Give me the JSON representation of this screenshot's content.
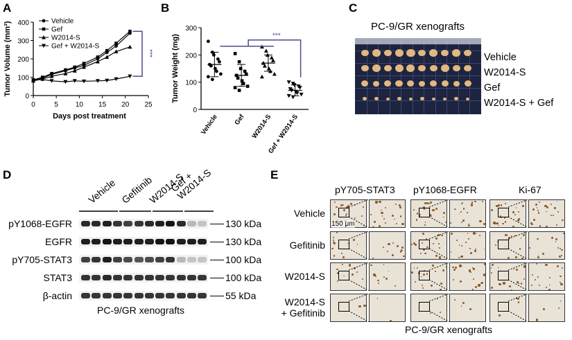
{
  "panelA": {
    "label": "A",
    "ylabel": "Tumor Volume (mm³)",
    "xlabel": "Days post treatment",
    "yticks": [
      "0",
      "100",
      "200",
      "300",
      "400"
    ],
    "xticks": [
      "0",
      "5",
      "10",
      "15",
      "20",
      "25"
    ],
    "legend": [
      "Vehicle",
      "Gef",
      "W2014-S",
      "Gef + W2014-S"
    ],
    "sig": "***",
    "chart_data": {
      "type": "line",
      "x": [
        0,
        2,
        4,
        7,
        9,
        11,
        14,
        16,
        18,
        21
      ],
      "series": [
        {
          "name": "Vehicle",
          "values": [
            80,
            95,
            115,
            135,
            150,
            165,
            200,
            235,
            270,
            340
          ]
        },
        {
          "name": "Gef",
          "values": [
            85,
            100,
            120,
            140,
            155,
            175,
            210,
            245,
            285,
            350
          ]
        },
        {
          "name": "W2014-S",
          "values": [
            80,
            90,
            105,
            120,
            135,
            155,
            185,
            210,
            240,
            265
          ]
        },
        {
          "name": "Gef + W2014-S",
          "values": [
            85,
            88,
            80,
            75,
            80,
            78,
            80,
            82,
            90,
            105
          ]
        }
      ],
      "xlim": [
        0,
        25
      ],
      "ylim": [
        0,
        400
      ]
    }
  },
  "panelB": {
    "label": "B",
    "ylabel": "Tumor Weight (mg)",
    "yticks": [
      "0",
      "100",
      "200",
      "300"
    ],
    "categories": [
      "Vehicle",
      "Gef",
      "W2014-S",
      "Gef + W2014-S"
    ],
    "sig": "***",
    "chart_data": {
      "type": "scatter",
      "ylim": [
        0,
        300
      ],
      "groups": [
        {
          "name": "Vehicle",
          "mean": 165,
          "sd": 45,
          "values": [
            250,
            210,
            200,
            185,
            175,
            165,
            160,
            150,
            140,
            130,
            120,
            110
          ]
        },
        {
          "name": "Gef",
          "mean": 125,
          "sd": 40,
          "values": [
            205,
            175,
            150,
            140,
            130,
            125,
            115,
            105,
            95,
            85,
            80,
            70
          ]
        },
        {
          "name": "W2014-S",
          "mean": 170,
          "sd": 30,
          "values": [
            230,
            215,
            200,
            190,
            180,
            170,
            160,
            150,
            140,
            130,
            120
          ]
        },
        {
          "name": "Gef + W2014-S",
          "mean": 70,
          "sd": 20,
          "values": [
            100,
            95,
            90,
            85,
            80,
            75,
            70,
            65,
            60,
            55,
            50,
            45
          ]
        }
      ]
    }
  },
  "panelC": {
    "label": "C",
    "title": "PC-9/GR xenografts",
    "rows": [
      "Vehicle",
      "W2014-S",
      "Gef",
      "W2014-S + Gef"
    ]
  },
  "panelD": {
    "label": "D",
    "lanes": [
      "Vehicle",
      "Gefitinib",
      "W2014-S",
      "Gef +\nW2014-S"
    ],
    "bands": [
      {
        "name": "pY1068-EGFR",
        "size": "130 kDa",
        "intensity": [
          0.9,
          0.9,
          0.95,
          0.85,
          0.8,
          0.85,
          0.9,
          0.95,
          1,
          0.9,
          0.25,
          0.2
        ]
      },
      {
        "name": "EGFR",
        "size": "130 kDa",
        "intensity": [
          0.95,
          0.95,
          1,
          0.95,
          0.95,
          0.95,
          0.95,
          1,
          1,
          0.95,
          0.95,
          0.95
        ]
      },
      {
        "name": "pY705-STAT3",
        "size": "100 kDa",
        "intensity": [
          0.8,
          0.85,
          0.95,
          0.8,
          0.75,
          0.7,
          0.75,
          0.8,
          0.85,
          0.25,
          0.2,
          0.2
        ]
      },
      {
        "name": "STAT3",
        "size": "100 kDa",
        "intensity": [
          0.85,
          0.85,
          0.9,
          0.85,
          0.85,
          0.85,
          0.85,
          0.85,
          0.85,
          0.85,
          0.85,
          0.85
        ]
      },
      {
        "name": "β-actin",
        "size": "55 kDa",
        "intensity": [
          0.85,
          0.85,
          0.85,
          0.85,
          0.85,
          0.85,
          0.85,
          0.85,
          0.85,
          0.85,
          0.85,
          0.85
        ]
      }
    ],
    "caption": "PC-9/GR xenografts"
  },
  "panelE": {
    "label": "E",
    "columns": [
      "pY705-STAT3",
      "pY1068-EGFR",
      "Ki-67"
    ],
    "rows": [
      "Vehicle",
      "Gefitinib",
      "W2014-S",
      "W2014-S\n+ Gefitinib"
    ],
    "scale": "150 μm",
    "caption": "PC-9/GR xenografts"
  },
  "colors": {
    "bracket": "#4b4b8f",
    "ihc_bg": "#e9e2d6",
    "ihc_dot": "#8a5a2b",
    "tray_bg": "#1d2440",
    "tumor": "#e2b880"
  }
}
